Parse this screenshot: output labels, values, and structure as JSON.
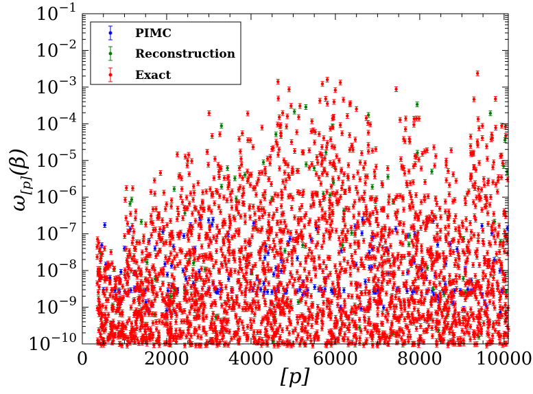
{
  "chart_data": {
    "type": "scatter",
    "title": "",
    "xlabel": "[p]",
    "ylabel_parts": {
      "main": "ω",
      "sub": "[p]",
      "rest": "(β)"
    },
    "xlim": [
      0,
      10100
    ],
    "ylim": [
      1e-10,
      0.1
    ],
    "yscale": "log",
    "grid": false,
    "legend_position": "top-left",
    "x_ticks": [
      {
        "value": 0,
        "label": "0"
      },
      {
        "value": 2000,
        "label": "2000"
      },
      {
        "value": 4000,
        "label": "4000"
      },
      {
        "value": 6000,
        "label": "6000"
      },
      {
        "value": 8000,
        "label": "8000"
      },
      {
        "value": 10000,
        "label": "10000"
      }
    ],
    "y_ticks": [
      {
        "exp": -10,
        "base": "10",
        "sup": "−10"
      },
      {
        "exp": -9,
        "base": "10",
        "sup": "−9"
      },
      {
        "exp": -8,
        "base": "10",
        "sup": "−8"
      },
      {
        "exp": -7,
        "base": "10",
        "sup": "−7"
      },
      {
        "exp": -6,
        "base": "10",
        "sup": "−6"
      },
      {
        "exp": -5,
        "base": "10",
        "sup": "−5"
      },
      {
        "exp": -4,
        "base": "10",
        "sup": "−4"
      },
      {
        "exp": -3,
        "base": "10",
        "sup": "−3"
      },
      {
        "exp": -2,
        "base": "10",
        "sup": "−2"
      },
      {
        "exp": -1,
        "base": "10",
        "sup": "−1"
      }
    ],
    "series": [
      {
        "name": "PIMC",
        "color": "#0000ff"
      },
      {
        "name": "Reconstruction",
        "color": "#008000"
      },
      {
        "name": "Exact",
        "color": "#ff0000"
      }
    ],
    "sectors": [
      {
        "p_start": 350,
        "p_end": 1000,
        "peak_exp": -6.5
      },
      {
        "p_start": 1000,
        "p_end": 1600,
        "peak_exp": -5.0
      },
      {
        "p_start": 1600,
        "p_end": 2250,
        "peak_exp": -4.4
      },
      {
        "p_start": 2250,
        "p_end": 2900,
        "peak_exp": -3.7
      },
      {
        "p_start": 2900,
        "p_end": 3700,
        "peak_exp": -3.1
      },
      {
        "p_start": 3700,
        "p_end": 4600,
        "peak_exp": -2.6
      },
      {
        "p_start": 4600,
        "p_end": 5600,
        "peak_exp": -2.1
      },
      {
        "p_start": 5600,
        "p_end": 6900,
        "peak_exp": -1.8
      },
      {
        "p_start": 6900,
        "p_end": 7400,
        "peak_exp": -3.5
      },
      {
        "p_start": 7400,
        "p_end": 8400,
        "peak_exp": -2.3
      },
      {
        "p_start": 8400,
        "p_end": 8600,
        "peak_exp": -5.0
      },
      {
        "p_start": 8600,
        "p_end": 9200,
        "peak_exp": -4.0
      },
      {
        "p_start": 9200,
        "p_end": 10100,
        "peak_exp": -2.0
      }
    ],
    "pimc_floor_exp": -8.55
  }
}
